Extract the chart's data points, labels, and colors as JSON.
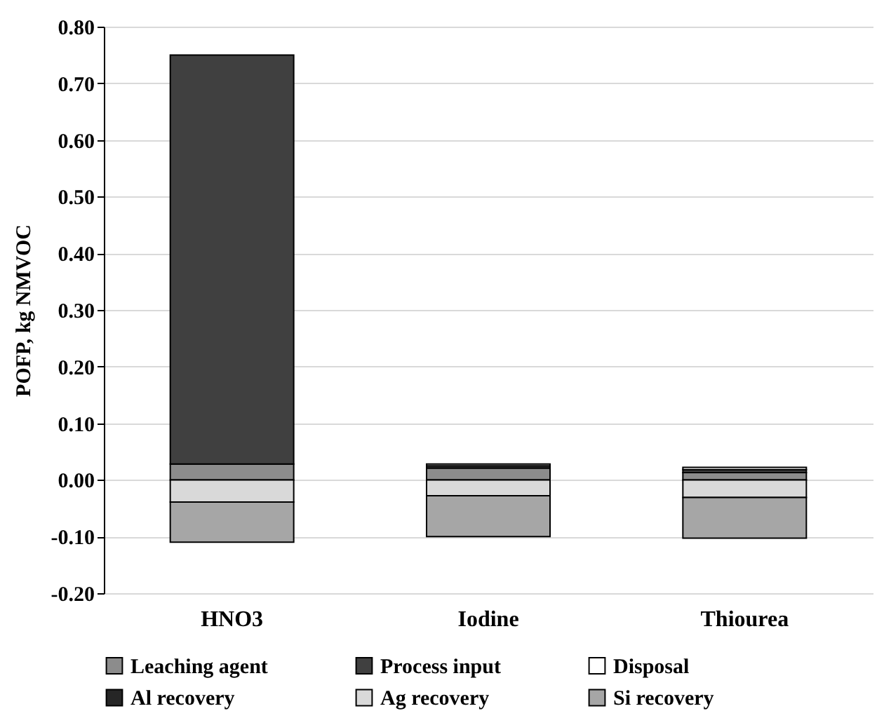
{
  "chart_data": {
    "type": "bar",
    "stacked": true,
    "ylabel": "POFP, kg NMVOC",
    "categories": [
      "HNO3",
      "Iodine",
      "Thiourea"
    ],
    "series": [
      {
        "name": "Leaching agent",
        "color": "#8c8c8c",
        "values": [
          0.028,
          0.021,
          0.013
        ]
      },
      {
        "name": "Process input",
        "color": "#404040",
        "values": [
          0.722,
          0.004,
          0.005
        ]
      },
      {
        "name": "Disposal",
        "color": "#ffffff",
        "values": [
          null,
          0.003,
          0.004
        ]
      },
      {
        "name": "Al recovery",
        "color": "#262626",
        "values": [
          0,
          0,
          0
        ]
      },
      {
        "name": "Ag recovery",
        "color": "#d9d9d9",
        "values": [
          -0.039,
          -0.028,
          -0.031
        ]
      },
      {
        "name": "Si recovery",
        "color": "#a6a6a6",
        "values": [
          -0.071,
          -0.072,
          -0.072
        ]
      }
    ],
    "ylim": [
      -0.2,
      0.8
    ],
    "yticks": [
      {
        "value": -0.2,
        "label": "-0.20"
      },
      {
        "value": -0.1,
        "label": "-0.10"
      },
      {
        "value": 0,
        "label": "0.00"
      },
      {
        "value": 0.1,
        "label": "0.10"
      },
      {
        "value": 0.2,
        "label": "0.20"
      },
      {
        "value": 0.3,
        "label": "0.30"
      },
      {
        "value": 0.4,
        "label": "0.40"
      },
      {
        "value": 0.5,
        "label": "0.50"
      },
      {
        "value": 0.6,
        "label": "0.60"
      },
      {
        "value": 0.7,
        "label": "0.70"
      },
      {
        "value": 0.8,
        "label": "0.80"
      }
    ],
    "grid": "y",
    "legend": "bottom"
  }
}
